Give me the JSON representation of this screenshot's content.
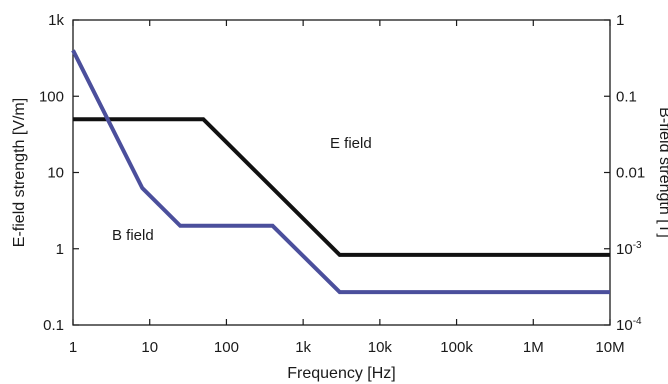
{
  "chart_data": {
    "type": "line",
    "xlabel": "Frequency [Hz]",
    "ylabel_left": "E-field strength [V/m]",
    "ylabel_right": "B-field strength [T]",
    "x_scale": "log",
    "y_scale_left": "log",
    "y_scale_right": "log",
    "xlim": [
      1,
      10000000
    ],
    "ylim_left": [
      0.1,
      1000
    ],
    "ylim_right": [
      0.0001,
      1
    ],
    "grid": false,
    "x_ticks": [
      {
        "value": 1,
        "label": "1"
      },
      {
        "value": 10,
        "label": "10"
      },
      {
        "value": 100,
        "label": "100"
      },
      {
        "value": 1000,
        "label": "1k"
      },
      {
        "value": 10000,
        "label": "10k"
      },
      {
        "value": 100000,
        "label": "100k"
      },
      {
        "value": 1000000,
        "label": "1M"
      },
      {
        "value": 10000000,
        "label": "10M"
      }
    ],
    "y_ticks_left": [
      {
        "value": 0.1,
        "label": "0.1"
      },
      {
        "value": 1,
        "label": "1"
      },
      {
        "value": 10,
        "label": "10"
      },
      {
        "value": 100,
        "label": "100"
      },
      {
        "value": 1000,
        "label": "1k"
      }
    ],
    "y_ticks_right": [
      {
        "value": 0.0001,
        "label": "10",
        "sup": "-4"
      },
      {
        "value": 0.001,
        "label": "10",
        "sup": "-3"
      },
      {
        "value": 0.01,
        "label": "0.01",
        "sup": ""
      },
      {
        "value": 0.1,
        "label": "0.1",
        "sup": ""
      },
      {
        "value": 1,
        "label": "1",
        "sup": ""
      }
    ],
    "series": [
      {
        "name": "E field",
        "axis": "left",
        "color": "#111111",
        "x": [
          1,
          50,
          3000,
          10000000
        ],
        "y": [
          50,
          50,
          0.83,
          0.83
        ]
      },
      {
        "name": "B field",
        "axis": "left",
        "color": "#4b4f9c",
        "x": [
          1,
          8,
          25,
          400,
          3000,
          10000000
        ],
        "y": [
          400,
          6.25,
          2,
          2,
          0.27,
          0.27
        ]
      }
    ],
    "annotations": [
      {
        "text": "E field",
        "series": "E field"
      },
      {
        "text": "B field",
        "series": "B field"
      }
    ]
  }
}
